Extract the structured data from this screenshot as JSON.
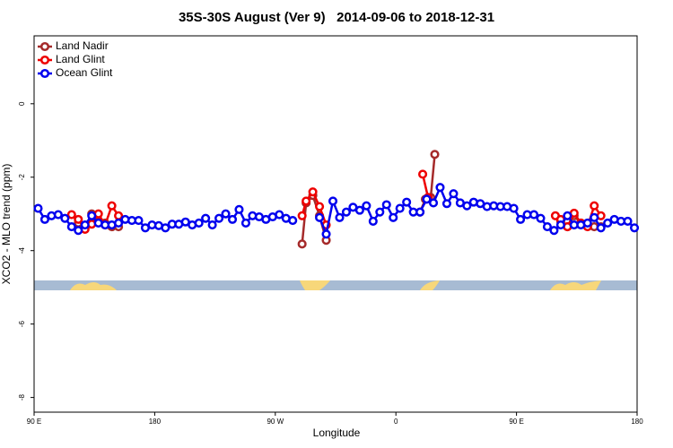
{
  "chart_data": {
    "type": "line",
    "title": "35S-30S August (Ver 9)   2014-09-06 to 2018-12-31",
    "x_label": "Longitude",
    "y_label": "XCO2 - MLO trend (ppm)",
    "xlim": [
      90,
      540
    ],
    "xticks": [
      {
        "value": 90,
        "label": "90 E"
      },
      {
        "value": 180,
        "label": "180"
      },
      {
        "value": 270,
        "label": "90 W"
      },
      {
        "value": 360,
        "label": "0"
      },
      {
        "value": 450,
        "label": "90 E"
      },
      {
        "value": 540,
        "label": "180"
      }
    ],
    "ylim": [
      -8.4,
      1.85
    ],
    "yticks": [
      0,
      -2,
      -4,
      -6,
      -8
    ],
    "legend": "top-left",
    "series": [
      {
        "name": "Land Nadir",
        "color": "#a52a2a",
        "x": [
          123,
          128,
          133,
          138,
          143,
          148,
          153,
          null,
          290,
          293,
          298,
          303,
          308,
          null,
          378,
          382,
          386,
          389,
          null,
          483,
          488,
          493,
          498,
          503,
          508,
          513
        ],
        "values": [
          -3.25,
          -3.35,
          -3.0,
          -3.2,
          -3.25,
          -3.35,
          -3.35,
          null,
          -3.82,
          -2.7,
          -2.5,
          -3.05,
          -3.72,
          null,
          -2.95,
          -2.6,
          -2.55,
          -1.38,
          null,
          -3.2,
          -3.35,
          -3.05,
          -3.25,
          -3.3,
          -3.35,
          -3.35
        ]
      },
      {
        "name": "Land Glint",
        "color": "#ee0000",
        "x": [
          118,
          123,
          128,
          133,
          138,
          143,
          148,
          153,
          null,
          290,
          293,
          298,
          303,
          308,
          null,
          380,
          384,
          null,
          479,
          483,
          488,
          493,
          498,
          503,
          508,
          513
        ],
        "values": [
          -3.02,
          -3.15,
          -3.42,
          -3.28,
          -3.0,
          -3.3,
          -2.78,
          -3.05,
          null,
          -3.05,
          -2.65,
          -2.4,
          -2.8,
          -3.3,
          null,
          -1.92,
          -2.55,
          null,
          -3.05,
          -3.15,
          -3.35,
          -2.98,
          -3.25,
          -3.35,
          -2.78,
          -3.05
        ]
      },
      {
        "name": "Ocean Glint",
        "color": "#0000ee",
        "x": [
          93,
          98,
          103,
          108,
          113,
          118,
          123,
          128,
          133,
          138,
          143,
          148,
          153,
          158,
          163,
          168,
          173,
          178,
          183,
          188,
          193,
          198,
          203,
          208,
          213,
          218,
          223,
          228,
          233,
          238,
          243,
          248,
          253,
          258,
          263,
          268,
          273,
          278,
          283,
          null,
          303,
          308,
          313,
          318,
          323,
          328,
          333,
          338,
          343,
          348,
          353,
          358,
          363,
          368,
          373,
          378,
          383,
          388,
          393,
          398,
          403,
          408,
          413,
          418,
          423,
          428,
          433,
          438,
          443,
          448,
          453,
          458,
          463,
          468,
          473,
          478,
          483,
          488,
          493,
          498,
          503,
          508,
          513,
          518,
          523,
          528,
          533,
          538
        ],
        "values": [
          -2.85,
          -3.15,
          -3.05,
          -3.02,
          -3.12,
          -3.35,
          -3.45,
          -3.3,
          -3.05,
          -3.25,
          -3.3,
          -3.3,
          -3.25,
          -3.15,
          -3.18,
          -3.18,
          -3.38,
          -3.3,
          -3.32,
          -3.38,
          -3.28,
          -3.28,
          -3.22,
          -3.3,
          -3.25,
          -3.12,
          -3.3,
          -3.12,
          -3.0,
          -3.15,
          -2.88,
          -3.25,
          -3.05,
          -3.08,
          -3.15,
          -3.08,
          -3.02,
          -3.12,
          -3.18,
          null,
          -3.1,
          -3.55,
          -2.65,
          -3.1,
          -2.95,
          -2.82,
          -2.9,
          -2.78,
          -3.2,
          -2.95,
          -2.75,
          -3.1,
          -2.85,
          -2.68,
          -2.95,
          -2.95,
          -2.6,
          -2.7,
          -2.28,
          -2.72,
          -2.45,
          -2.7,
          -2.78,
          -2.68,
          -2.72,
          -2.8,
          -2.78,
          -2.8,
          -2.8,
          -2.85,
          -3.15,
          -3.02,
          -3.02,
          -3.12,
          -3.35,
          -3.45,
          -3.3,
          -3.05,
          -3.3,
          -3.3,
          -3.25,
          -3.1,
          -3.38,
          -3.25,
          -3.15,
          -3.2,
          -3.2,
          -3.38
        ]
      }
    ]
  }
}
